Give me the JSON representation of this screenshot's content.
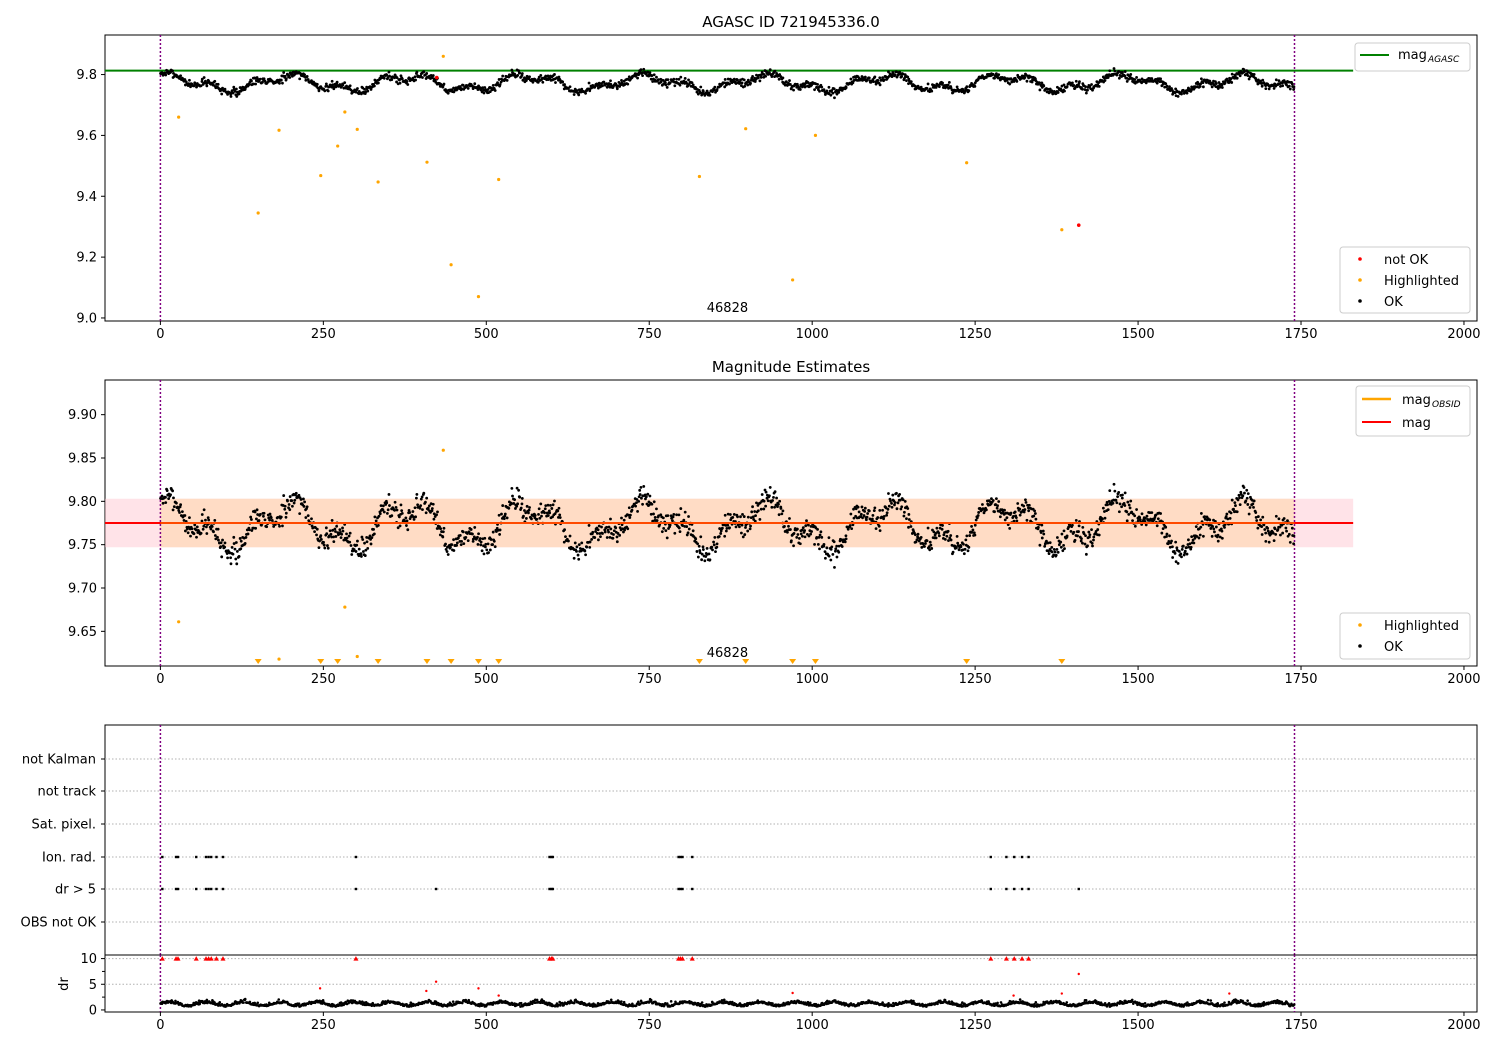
{
  "figure": {
    "panels": [
      {
        "title": "AGASC ID 721945336.0",
        "obsid_label": "46828",
        "legend_line": {
          "label": "mag",
          "subscript": "AGASC"
        },
        "legend_points": [
          "not OK",
          "Highlighted",
          "OK"
        ]
      },
      {
        "title": "Magnitude Estimates",
        "obsid_label": "46828",
        "legend_line": [
          {
            "label": "mag",
            "subscript": "OBSID"
          },
          {
            "label": "mag"
          }
        ],
        "legend_points": [
          "Highlighted",
          "OK"
        ]
      },
      {
        "title": "",
        "row_labels": [
          "not Kalman",
          "not track",
          "Sat. pixel.",
          "Ion. rad.",
          "dr > 5",
          "OBS not OK"
        ]
      },
      {
        "title": "",
        "ylabel": "dr"
      }
    ]
  },
  "chart_data": [
    {
      "type": "scatter",
      "title": "AGASC ID 721945336.0",
      "xlabel": "",
      "ylabel": "",
      "xlim": [
        -85,
        2020
      ],
      "ylim": [
        8.99,
        9.93
      ],
      "x_ticks": [
        0,
        250,
        500,
        750,
        1000,
        1250,
        1500,
        1750,
        2000
      ],
      "y_ticks": [
        9.0,
        9.2,
        9.4,
        9.6,
        9.8
      ],
      "grid": false,
      "legend_position": "top-right and bottom-right",
      "obsid_boundaries": [
        0,
        1740
      ],
      "obsid_annotation": {
        "text": "46828",
        "x": 870
      },
      "mag_agasc": 9.813,
      "colors": {
        "ok": "#000000",
        "highlighted": "#ffa500",
        "not_ok": "#ff0000",
        "mag_agasc": "#008000",
        "boundary": "#800080"
      },
      "ok_series": {
        "name": "OK",
        "n": 1740,
        "mean": 9.772,
        "oscillation": [
          {
            "amplitude": 0.022,
            "period": 183,
            "phase": 1.1
          },
          {
            "amplitude": 0.013,
            "period": 66,
            "phase": 0.4
          }
        ],
        "scatter": 0.009
      },
      "highlighted": {
        "name": "Highlighted",
        "x": [
          28,
          150,
          182,
          246,
          272,
          283,
          302,
          334,
          409,
          434,
          446,
          488,
          519,
          827,
          898,
          970,
          1005,
          1237,
          1383
        ],
        "y": [
          9.66,
          9.345,
          9.617,
          9.468,
          9.565,
          9.677,
          9.62,
          9.447,
          9.512,
          9.86,
          9.175,
          9.07,
          9.455,
          9.465,
          9.622,
          9.125,
          9.6,
          9.51,
          9.29
        ]
      },
      "not_ok": {
        "name": "not OK",
        "x": [
          424,
          1409
        ],
        "y": [
          9.79,
          9.305
        ]
      }
    },
    {
      "type": "scatter",
      "title": "Magnitude Estimates",
      "xlabel": "",
      "ylabel": "",
      "xlim": [
        -85,
        2020
      ],
      "ylim": [
        9.61,
        9.94
      ],
      "x_ticks": [
        0,
        250,
        500,
        750,
        1000,
        1250,
        1500,
        1750,
        2000
      ],
      "y_ticks": [
        9.65,
        9.7,
        9.75,
        9.8,
        9.85,
        9.9
      ],
      "grid": false,
      "legend_position": "top-right and bottom-right",
      "mag": 9.775,
      "mag_obsid": 9.775,
      "mag_band": [
        9.747,
        9.803
      ],
      "colors": {
        "mag": "#ff0000",
        "mag_obsid": "#ffa500",
        "band": "#ffc0cb",
        "band_obsid": "#ffdab9"
      },
      "highlighted_in_range": {
        "x": [
          28,
          182,
          283,
          302,
          434
        ],
        "y": [
          9.661,
          9.618,
          9.678,
          9.621,
          9.859
        ]
      },
      "highlighted_below_range": {
        "x": [
          150,
          246,
          272,
          334,
          409,
          446,
          488,
          519,
          827,
          898,
          970,
          1005,
          1237,
          1383
        ]
      },
      "obsid_annotation": {
        "text": "46828",
        "x": 870
      }
    },
    {
      "type": "scatter",
      "title": "",
      "rows": [
        "not Kalman",
        "not track",
        "Sat. pixel.",
        "Ion. rad.",
        "dr > 5",
        "OBS not OK"
      ],
      "ion_rad_x": [
        3,
        24,
        27,
        55,
        70,
        74,
        78,
        86,
        96,
        300,
        597,
        600,
        602,
        795,
        798,
        801,
        816,
        1274,
        1298,
        1310,
        1322,
        1332
      ],
      "dr5_x": [
        3,
        24,
        27,
        55,
        70,
        74,
        78,
        86,
        96,
        300,
        423,
        597,
        600,
        602,
        795,
        798,
        801,
        816,
        1274,
        1298,
        1310,
        1322,
        1332,
        1409
      ]
    },
    {
      "type": "scatter",
      "title": "",
      "xlabel": "",
      "ylabel": "dr",
      "xlim": [
        -85,
        2020
      ],
      "ylim": [
        -0.4,
        10.7
      ],
      "x_ticks": [
        0,
        250,
        500,
        750,
        1000,
        1250,
        1500,
        1750,
        2000
      ],
      "y_ticks": [
        0,
        5,
        10
      ],
      "capped_points_x": [
        3,
        24,
        27,
        55,
        70,
        74,
        78,
        86,
        96,
        300,
        597,
        600,
        602,
        795,
        798,
        801,
        816,
        1274,
        1298,
        1310,
        1322,
        1332
      ],
      "capped_value": 10,
      "outliers": {
        "x": [
          245,
          408,
          423,
          488,
          519,
          970,
          1309,
          1383,
          1409,
          1640
        ],
        "y": [
          4.2,
          3.7,
          5.5,
          4.2,
          2.8,
          3.3,
          2.8,
          3.2,
          7.0,
          3.2
        ]
      },
      "ok_series": {
        "n": 1740,
        "mean": 1.0,
        "spread": 0.9
      }
    }
  ]
}
